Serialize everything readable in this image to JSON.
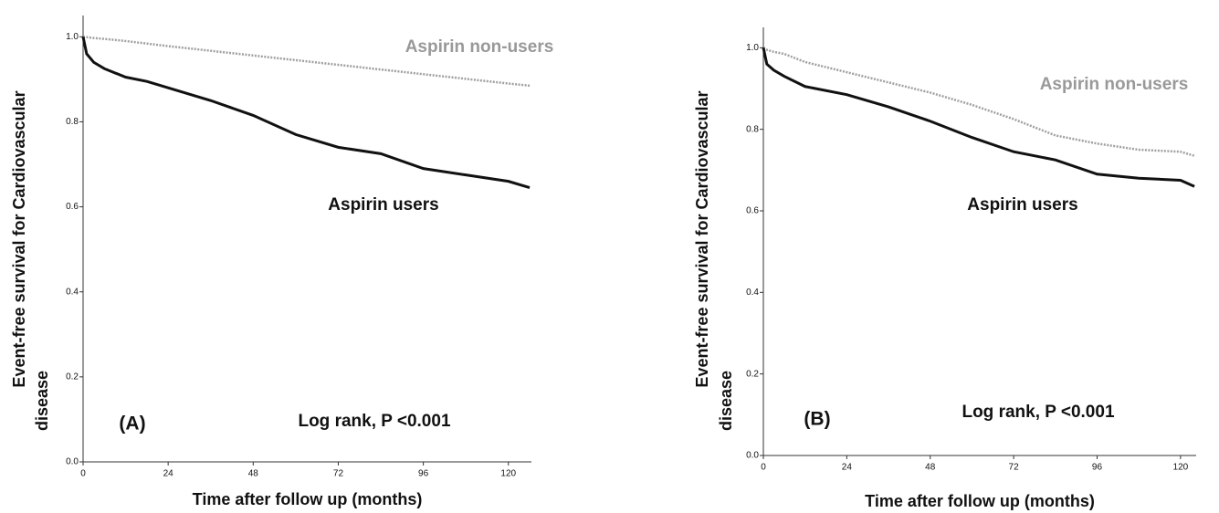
{
  "chart_data": [
    {
      "type": "line",
      "panel": "(A)",
      "annotation": "Log rank, P <0.001",
      "xlabel": "Time after follow up (months)",
      "ylabel": [
        "Event-free  survival for Cardiovascular",
        "disease"
      ],
      "x": [
        0,
        1,
        3,
        6,
        12,
        18,
        24,
        36,
        48,
        60,
        72,
        84,
        96,
        108,
        120,
        126
      ],
      "series": [
        {
          "name": "Aspirin non-users",
          "color": "#a0a0a0",
          "dash": true,
          "values": [
            1.0,
            0.999,
            0.997,
            0.995,
            0.99,
            0.984,
            0.978,
            0.967,
            0.956,
            0.945,
            0.934,
            0.923,
            0.912,
            0.901,
            0.89,
            0.885
          ]
        },
        {
          "name": "Aspirin users",
          "color": "#111111",
          "dash": false,
          "values": [
            1.0,
            0.96,
            0.94,
            0.925,
            0.905,
            0.895,
            0.88,
            0.85,
            0.815,
            0.77,
            0.74,
            0.725,
            0.69,
            0.675,
            0.66,
            0.645
          ]
        }
      ],
      "xlim": [
        0,
        126.5
      ],
      "xticks": [
        0,
        24,
        48,
        72,
        96,
        120
      ],
      "ylim": [
        0,
        1.05
      ],
      "yticks": [
        {
          "value": 0,
          "label": "0.0"
        },
        0.2,
        0.4,
        0.6,
        0.8,
        {
          "value": 1,
          "label": "1.0"
        }
      ]
    },
    {
      "type": "line",
      "panel": "(B)",
      "annotation": "Log rank, P <0.001",
      "xlabel": "Time after follow up (months)",
      "ylabel": [
        "Event-free  survival for Cardiovascular",
        "disease"
      ],
      "x": [
        0,
        1,
        3,
        6,
        12,
        24,
        36,
        48,
        60,
        72,
        84,
        96,
        108,
        120,
        124
      ],
      "series": [
        {
          "name": "Aspirin non-users",
          "color": "#a0a0a0",
          "dash": true,
          "values": [
            1.0,
            0.995,
            0.99,
            0.985,
            0.965,
            0.94,
            0.915,
            0.89,
            0.86,
            0.825,
            0.785,
            0.765,
            0.75,
            0.745,
            0.735
          ]
        },
        {
          "name": "Aspirin users",
          "color": "#111111",
          "dash": false,
          "values": [
            1.0,
            0.96,
            0.945,
            0.93,
            0.905,
            0.885,
            0.855,
            0.82,
            0.78,
            0.745,
            0.725,
            0.69,
            0.68,
            0.675,
            0.66
          ]
        }
      ],
      "xlim": [
        0,
        124.5
      ],
      "xticks": [
        0,
        24,
        48,
        72,
        96,
        120
      ],
      "ylim": [
        0,
        1.05
      ],
      "yticks": [
        {
          "value": 0,
          "label": "0.0"
        },
        0.2,
        0.4,
        0.6,
        0.8,
        {
          "value": 1,
          "label": "1.0"
        }
      ]
    }
  ]
}
